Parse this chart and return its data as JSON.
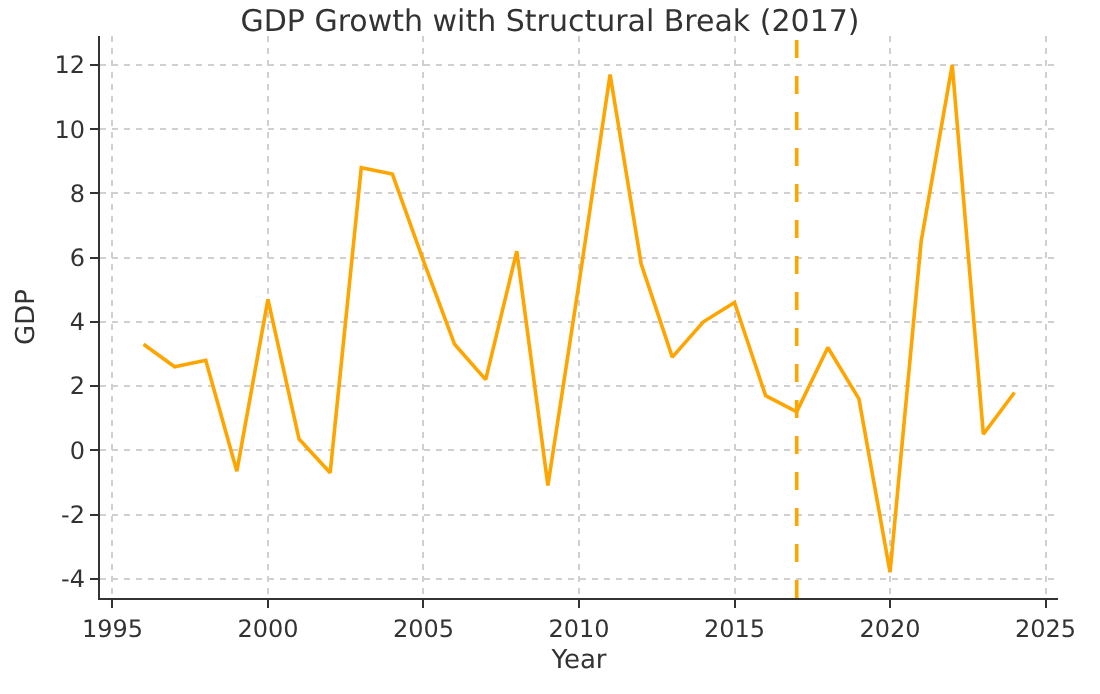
{
  "chart_data": {
    "type": "line",
    "title": "GDP Growth with Structural Break (2017)",
    "xlabel": "Year",
    "ylabel": "GDP",
    "x": [
      1996,
      1997,
      1998,
      1999,
      2000,
      2001,
      2002,
      2003,
      2004,
      2005,
      2006,
      2007,
      2008,
      2009,
      2010,
      2011,
      2012,
      2013,
      2014,
      2015,
      2016,
      2017,
      2018,
      2019,
      2020,
      2021,
      2022,
      2023,
      2024
    ],
    "series": [
      {
        "color": "#ffa500",
        "values": [
          3.3,
          2.6,
          2.8,
          -0.65,
          4.7,
          0.35,
          -0.7,
          8.8,
          8.6,
          5.9,
          3.3,
          2.2,
          6.2,
          -1.1,
          5.2,
          11.7,
          5.8,
          2.9,
          4.0,
          4.6,
          1.7,
          1.2,
          3.2,
          1.6,
          -3.8,
          6.5,
          12.0,
          0.5,
          1.8
        ]
      }
    ],
    "xlim": [
      1994.6,
      2025.4
    ],
    "xticks": [
      1995,
      2000,
      2005,
      2010,
      2015,
      2020,
      2025
    ],
    "ylim": [
      -4.6,
      12.9
    ],
    "yticks": [
      -4,
      -2,
      0,
      2,
      4,
      6,
      8,
      10,
      12
    ],
    "ref_lines": [
      {
        "axis": "x",
        "value": 2017,
        "color": "#ffa500",
        "line_style": "dashed"
      }
    ],
    "grid": true,
    "line_style": "solid"
  }
}
